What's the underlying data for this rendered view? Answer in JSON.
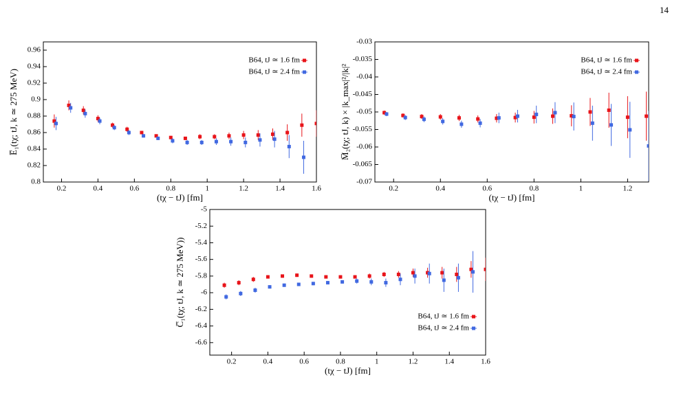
{
  "page_number": "14",
  "chart_data": [
    {
      "type": "scatter",
      "ylabel": "E̅₁(tχ; tJ, k ≃ 275 MeV)",
      "xlabel": "(tχ − tJ) [fm]",
      "legend": "upper right",
      "xlim": [
        0.1,
        1.6
      ],
      "xticks": [
        0.2,
        0.4,
        0.6,
        0.8,
        1,
        1.2,
        1.4,
        1.6
      ],
      "ylim": [
        0.8,
        0.97
      ],
      "yticks": [
        0.8,
        0.82,
        0.84,
        0.86,
        0.88,
        0.9,
        0.92,
        0.94,
        0.96
      ],
      "series": [
        {
          "name": "B64, tJ ≃ 1.6 fm",
          "color": "#e8141a",
          "x": [
            0.16,
            0.24,
            0.32,
            0.4,
            0.48,
            0.56,
            0.64,
            0.72,
            0.8,
            0.88,
            0.96,
            1.04,
            1.12,
            1.2,
            1.28,
            1.36,
            1.44,
            1.52,
            1.6
          ],
          "values": [
            0.874,
            0.893,
            0.887,
            0.877,
            0.869,
            0.864,
            0.86,
            0.856,
            0.854,
            0.853,
            0.855,
            0.855,
            0.856,
            0.857,
            0.857,
            0.858,
            0.86,
            0.869,
            0.871
          ],
          "errors": [
            0.008,
            0.006,
            0.005,
            0.004,
            0.003,
            0.003,
            0.002,
            0.002,
            0.002,
            0.002,
            0.003,
            0.003,
            0.004,
            0.005,
            0.006,
            0.007,
            0.01,
            0.014,
            0.016
          ]
        },
        {
          "name": "B64, tJ ≃ 2.4 fm",
          "color": "#4169e1",
          "x": [
            0.17,
            0.25,
            0.33,
            0.41,
            0.49,
            0.57,
            0.65,
            0.73,
            0.81,
            0.89,
            0.97,
            1.05,
            1.13,
            1.21,
            1.29,
            1.37,
            1.45,
            1.53
          ],
          "values": [
            0.871,
            0.89,
            0.883,
            0.874,
            0.866,
            0.86,
            0.856,
            0.853,
            0.85,
            0.848,
            0.848,
            0.849,
            0.849,
            0.848,
            0.851,
            0.852,
            0.843,
            0.83
          ],
          "errors": [
            0.008,
            0.006,
            0.005,
            0.004,
            0.003,
            0.003,
            0.002,
            0.002,
            0.003,
            0.003,
            0.003,
            0.004,
            0.005,
            0.006,
            0.008,
            0.01,
            0.014,
            0.02
          ]
        }
      ]
    },
    {
      "type": "scatter",
      "ylabel": "M̅₂(tχ; tJ, k) × |k_max|²/|k|²",
      "xlabel": "(tχ − tJ) [fm]",
      "legend": "upper right",
      "xlim": [
        0.12,
        1.29
      ],
      "xticks": [
        0.2,
        0.4,
        0.6,
        0.8,
        1,
        1.2
      ],
      "ylim": [
        -0.07,
        -0.03
      ],
      "yticks": [
        -0.07,
        -0.065,
        -0.06,
        -0.055,
        -0.05,
        -0.045,
        -0.04,
        -0.035,
        -0.03
      ],
      "series": [
        {
          "name": "B64, tJ ≃ 1.6 fm",
          "color": "#e8141a",
          "x": [
            0.16,
            0.24,
            0.32,
            0.4,
            0.48,
            0.56,
            0.64,
            0.72,
            0.8,
            0.88,
            0.96,
            1.04,
            1.12,
            1.2,
            1.28
          ],
          "values": [
            -0.0502,
            -0.051,
            -0.0513,
            -0.0514,
            -0.0517,
            -0.052,
            -0.0518,
            -0.0516,
            -0.0515,
            -0.0512,
            -0.0511,
            -0.05,
            -0.0495,
            -0.0515,
            -0.0512
          ],
          "errors": [
            0.0006,
            0.0006,
            0.0007,
            0.0008,
            0.0009,
            0.001,
            0.0012,
            0.0014,
            0.0018,
            0.0022,
            0.003,
            0.004,
            0.005,
            0.006,
            0.007
          ]
        },
        {
          "name": "B64, tJ ≃ 2.4 fm",
          "color": "#4169e1",
          "x": [
            0.17,
            0.25,
            0.33,
            0.41,
            0.49,
            0.57,
            0.65,
            0.73,
            0.81,
            0.89,
            0.97,
            1.05,
            1.13,
            1.21,
            1.29
          ],
          "values": [
            -0.0506,
            -0.0516,
            -0.0521,
            -0.0527,
            -0.0535,
            -0.0532,
            -0.0517,
            -0.0512,
            -0.0507,
            -0.0502,
            -0.0513,
            -0.0532,
            -0.0537,
            -0.0551,
            -0.0597
          ],
          "errors": [
            0.0006,
            0.0007,
            0.0008,
            0.0009,
            0.001,
            0.0012,
            0.0015,
            0.0018,
            0.0025,
            0.003,
            0.004,
            0.005,
            0.006,
            0.008,
            0.01
          ]
        }
      ]
    },
    {
      "type": "scatter",
      "ylabel": "C̅₁(tχ; tJ, k ≃ 275 MeV))",
      "xlabel": "(tχ − tJ) [fm]",
      "legend": "lower right",
      "xlim": [
        0.08,
        1.6
      ],
      "xticks": [
        0.2,
        0.4,
        0.6,
        0.8,
        1,
        1.2,
        1.4,
        1.6
      ],
      "ylim": [
        -6.75,
        -5
      ],
      "yticks": [
        -6.6,
        -6.4,
        -6.2,
        -6,
        -5.8,
        -5.6,
        -5.4,
        -5.2,
        -5
      ],
      "series": [
        {
          "name": "B64, tJ ≃ 1.6 fm",
          "color": "#e8141a",
          "x": [
            0.16,
            0.24,
            0.32,
            0.4,
            0.48,
            0.56,
            0.64,
            0.72,
            0.8,
            0.88,
            0.96,
            1.04,
            1.12,
            1.2,
            1.28,
            1.36,
            1.44,
            1.52,
            1.6
          ],
          "values": [
            -5.91,
            -5.88,
            -5.84,
            -5.81,
            -5.8,
            -5.79,
            -5.8,
            -5.81,
            -5.81,
            -5.81,
            -5.8,
            -5.78,
            -5.78,
            -5.76,
            -5.76,
            -5.76,
            -5.78,
            -5.72,
            -5.72
          ],
          "errors": [
            0.03,
            0.03,
            0.03,
            0.02,
            0.02,
            0.02,
            0.02,
            0.02,
            0.02,
            0.02,
            0.03,
            0.03,
            0.04,
            0.05,
            0.06,
            0.07,
            0.09,
            0.1,
            0.14
          ]
        },
        {
          "name": "B64, tJ ≃ 2.4 fm",
          "color": "#4169e1",
          "x": [
            0.17,
            0.25,
            0.33,
            0.41,
            0.49,
            0.57,
            0.65,
            0.73,
            0.81,
            0.89,
            0.97,
            1.05,
            1.13,
            1.21,
            1.29,
            1.37,
            1.45,
            1.53
          ],
          "values": [
            -6.05,
            -6.01,
            -5.97,
            -5.93,
            -5.91,
            -5.9,
            -5.89,
            -5.88,
            -5.87,
            -5.86,
            -5.87,
            -5.88,
            -5.84,
            -5.8,
            -5.77,
            -5.85,
            -5.82,
            -5.75
          ],
          "errors": [
            0.03,
            0.03,
            0.03,
            0.02,
            0.02,
            0.02,
            0.02,
            0.02,
            0.02,
            0.03,
            0.04,
            0.05,
            0.07,
            0.09,
            0.12,
            0.14,
            0.17,
            0.25
          ]
        }
      ]
    }
  ]
}
